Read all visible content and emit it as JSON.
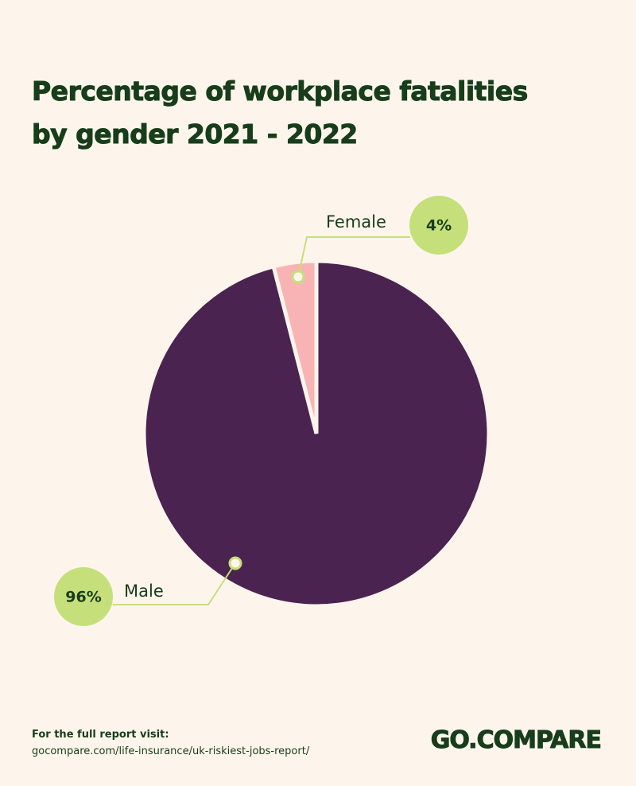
{
  "chart_data": {
    "type": "pie",
    "title": "Percentage of workplace fatalities by gender 2021 - 2022",
    "categories": [
      "Male",
      "Female"
    ],
    "values": [
      96,
      4
    ],
    "value_labels": [
      "96%",
      "4%"
    ],
    "colors": [
      "#4a2350",
      "#f8b4b4"
    ]
  },
  "footer": {
    "note": "For  the full report visit:",
    "url": "gocompare.com/life-insurance/uk-riskiest-jobs-report/",
    "logo": "GO.COMPARE"
  }
}
